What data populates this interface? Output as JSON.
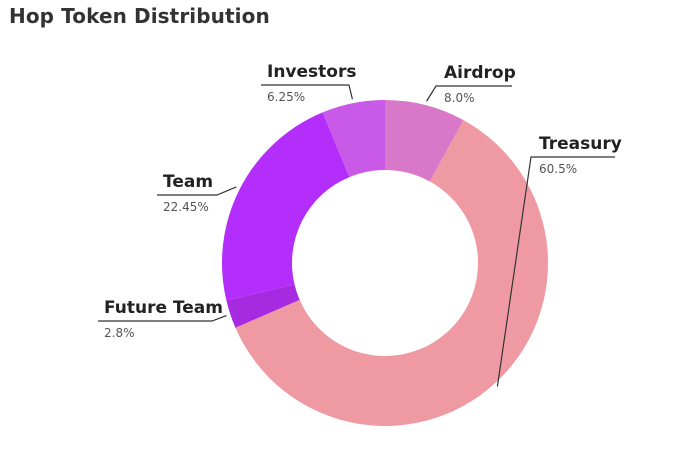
{
  "chart_data": {
    "type": "pie",
    "title": "Hop Token Distribution",
    "donut": true,
    "slices": [
      {
        "name": "Airdrop",
        "value": 8.0,
        "label": "8.0%",
        "color": "#d977c9"
      },
      {
        "name": "Treasury",
        "value": 60.5,
        "label": "60.5%",
        "color": "#ef9aa3"
      },
      {
        "name": "Future Team",
        "value": 2.8,
        "label": "2.8%",
        "color": "#a62be0"
      },
      {
        "name": "Team",
        "value": 22.45,
        "label": "22.45%",
        "color": "#b32efa"
      },
      {
        "name": "Investors",
        "value": 6.25,
        "label": "6.25%",
        "color": "#c95ae8"
      }
    ],
    "grid": false,
    "legend": "none"
  }
}
